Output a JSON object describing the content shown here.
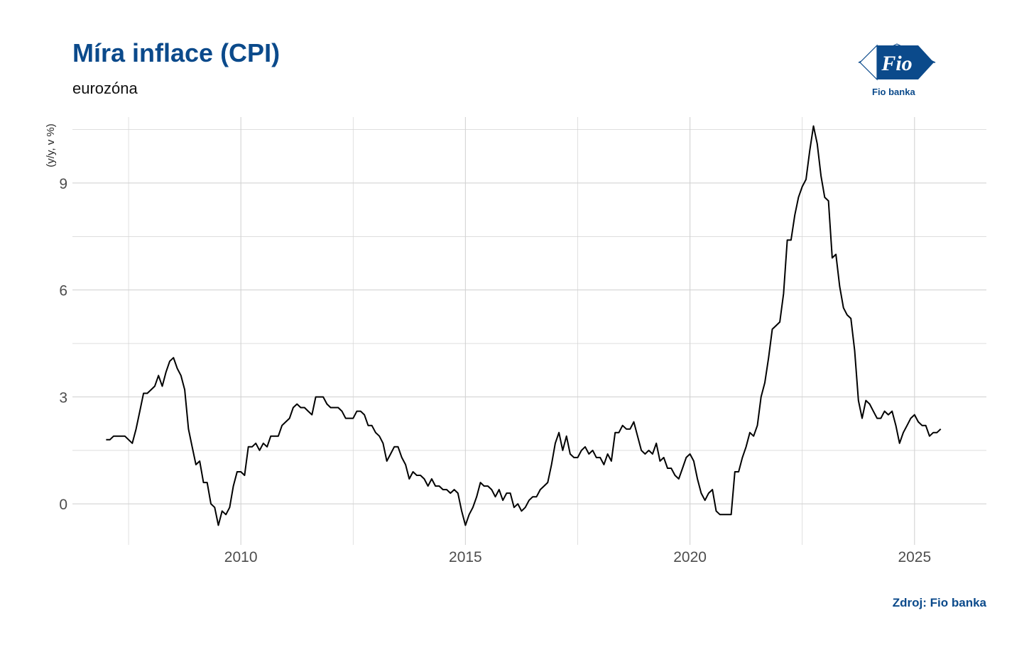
{
  "header": {
    "title": "Míra inflace (CPI)",
    "subtitle": "eurozóna"
  },
  "logo": {
    "text": "Fio",
    "caption": "Fio banka",
    "icon": "fio-flag-logo-icon"
  },
  "footer": {
    "source": "Zdroj: Fio banka"
  },
  "colors": {
    "brand": "#0b4a8b",
    "line": "#000000",
    "grid": "#d3d3d3",
    "tick_text": "#4d4d4d"
  },
  "chart_data": {
    "type": "line",
    "title": "Míra inflace (CPI)",
    "subtitle": "eurozóna",
    "xlabel": "",
    "ylabel": "(y/y, v %)",
    "x_ticks": [
      "2010",
      "2015",
      "2020",
      "2025"
    ],
    "y_ticks": [
      "0",
      "3",
      "6",
      "9"
    ],
    "xlim": [
      2006.25,
      2026.6
    ],
    "ylim": [
      -1.15,
      10.85
    ],
    "grid": true,
    "legend": "none",
    "x_start": "2007-01",
    "frequency": "monthly",
    "series": [
      {
        "values": [
          1.8,
          1.8,
          1.9,
          1.9,
          1.9,
          1.9,
          1.8,
          1.7,
          2.1,
          2.6,
          3.1,
          3.1,
          3.2,
          3.3,
          3.6,
          3.3,
          3.7,
          4.0,
          4.1,
          3.8,
          3.6,
          3.2,
          2.1,
          1.6,
          1.1,
          1.2,
          0.6,
          0.6,
          0.0,
          -0.1,
          -0.6,
          -0.2,
          -0.3,
          -0.1,
          0.5,
          0.9,
          0.9,
          0.8,
          1.6,
          1.6,
          1.7,
          1.5,
          1.7,
          1.6,
          1.9,
          1.9,
          1.9,
          2.2,
          2.3,
          2.4,
          2.7,
          2.8,
          2.7,
          2.7,
          2.6,
          2.5,
          3.0,
          3.0,
          3.0,
          2.8,
          2.7,
          2.7,
          2.7,
          2.6,
          2.4,
          2.4,
          2.4,
          2.6,
          2.6,
          2.5,
          2.2,
          2.2,
          2.0,
          1.9,
          1.7,
          1.2,
          1.4,
          1.6,
          1.6,
          1.3,
          1.1,
          0.7,
          0.9,
          0.8,
          0.8,
          0.7,
          0.5,
          0.7,
          0.5,
          0.5,
          0.4,
          0.4,
          0.3,
          0.4,
          0.3,
          -0.2,
          -0.6,
          -0.3,
          -0.1,
          0.2,
          0.6,
          0.5,
          0.5,
          0.4,
          0.2,
          0.4,
          0.1,
          0.3,
          0.3,
          -0.1,
          0.0,
          -0.2,
          -0.1,
          0.1,
          0.2,
          0.2,
          0.4,
          0.5,
          0.6,
          1.1,
          1.7,
          2.0,
          1.5,
          1.9,
          1.4,
          1.3,
          1.3,
          1.5,
          1.6,
          1.4,
          1.5,
          1.3,
          1.3,
          1.1,
          1.4,
          1.2,
          2.0,
          2.0,
          2.2,
          2.1,
          2.1,
          2.3,
          1.9,
          1.5,
          1.4,
          1.5,
          1.4,
          1.7,
          1.2,
          1.3,
          1.0,
          1.0,
          0.8,
          0.7,
          1.0,
          1.3,
          1.4,
          1.2,
          0.7,
          0.3,
          0.1,
          0.3,
          0.4,
          -0.2,
          -0.3,
          -0.3,
          -0.3,
          -0.3,
          0.9,
          0.9,
          1.3,
          1.6,
          2.0,
          1.9,
          2.2,
          3.0,
          3.4,
          4.1,
          4.9,
          5.0,
          5.1,
          5.9,
          7.4,
          7.4,
          8.1,
          8.6,
          8.9,
          9.1,
          9.9,
          10.6,
          10.1,
          9.2,
          8.6,
          8.5,
          6.9,
          7.0,
          6.1,
          5.5,
          5.3,
          5.2,
          4.3,
          2.9,
          2.4,
          2.9,
          2.8,
          2.6,
          2.4,
          2.4,
          2.6,
          2.5,
          2.6,
          2.2,
          1.7,
          2.0,
          2.2,
          2.4,
          2.5,
          2.3,
          2.2,
          2.2,
          1.9,
          2.0,
          2.0,
          2.1
        ]
      }
    ]
  }
}
